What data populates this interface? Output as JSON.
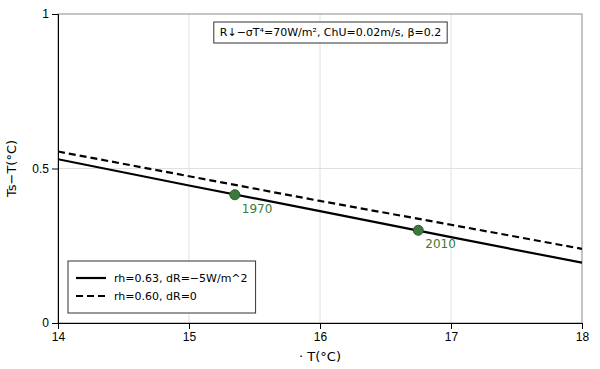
{
  "chart_data": {
    "type": "line",
    "title": "R↓−σT⁴=70W/m²,   ChU=0.02m/s,   β=0.2",
    "x_label": "· T(°C)",
    "y_label": "Ts−T(°C)",
    "x": [
      14,
      15,
      16,
      17,
      18
    ],
    "series": [
      {
        "name": "rh=0.63, dR=−5W/m^2",
        "color": "#000000",
        "line_style": "solid",
        "values": [
          0.53,
          0.445,
          0.362,
          0.278,
          0.195
        ]
      },
      {
        "name": "rh=0.60, dR=0",
        "color": "#000000",
        "line_style": "dashed",
        "values": [
          0.555,
          0.475,
          0.395,
          0.318,
          0.24
        ]
      },
      {
        "type": "scatter",
        "color": "#3a7a3a",
        "marker": "circle",
        "x": [
          15.35,
          16.75
        ],
        "values": [
          0.415,
          0.3
        ]
      }
    ],
    "annotations": [
      {
        "text": "1970",
        "x": 15.35,
        "y": 0.415,
        "color": "#3a7a3a"
      },
      {
        "text": "2010",
        "x": 16.75,
        "y": 0.3,
        "color": "#3a7a3a"
      }
    ],
    "xlim": [
      14,
      18
    ],
    "ylim": [
      0,
      1
    ],
    "xticks": [
      14,
      15,
      16,
      17,
      18
    ],
    "yticks": [
      0,
      0.5,
      1
    ],
    "grid": true,
    "legend": "lower left"
  }
}
